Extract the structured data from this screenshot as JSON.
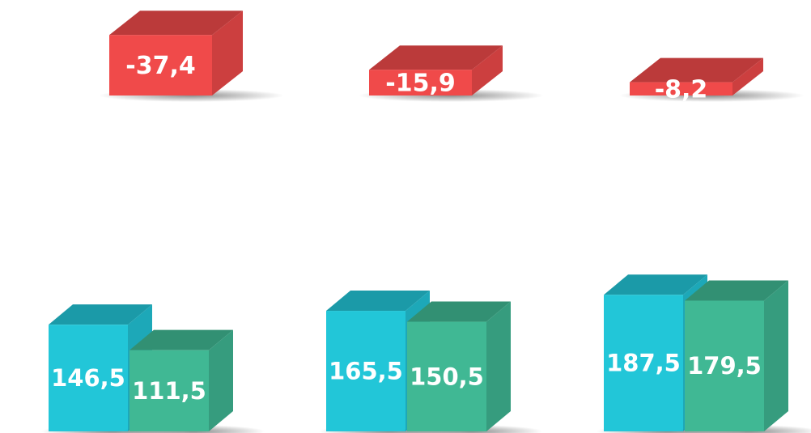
{
  "chart_data": [
    {
      "type": "bar",
      "color": "#f04a4a",
      "values": [
        -37.4,
        -15.9,
        -8.2
      ],
      "value_labels": [
        "-37,4",
        "-15,9",
        "-8,2"
      ]
    },
    {
      "type": "bar",
      "series": [
        {
          "color": "#22c6d8",
          "values": [
            146.5,
            165.5,
            187.5
          ],
          "value_labels": [
            "146,5",
            "165,5",
            "187,5"
          ]
        },
        {
          "color": "#40b894",
          "values": [
            111.5,
            150.5,
            179.5
          ],
          "value_labels": [
            "111,5",
            "150,5",
            "179,5"
          ]
        }
      ]
    }
  ]
}
